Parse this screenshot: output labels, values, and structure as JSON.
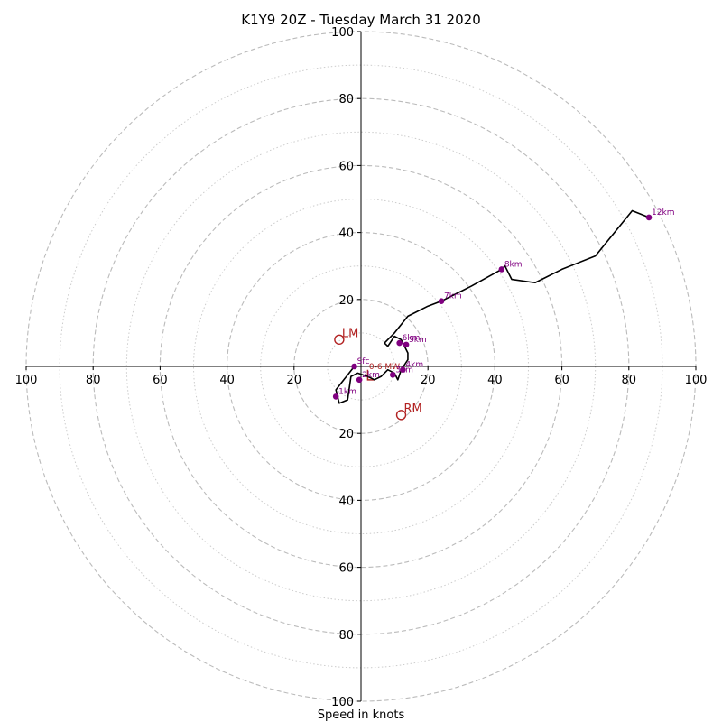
{
  "chart_data": {
    "type": "hodograph",
    "title": "K1Y9 20Z - Tuesday March 31 2020",
    "xlabel": "Speed in knots",
    "ylabel": "",
    "range": [
      -100,
      100
    ],
    "ring_major": [
      20,
      40,
      60,
      80,
      100
    ],
    "ring_minor": [
      10,
      30,
      50,
      70,
      90
    ],
    "tick_labels": [
      20,
      40,
      60,
      80,
      100
    ],
    "grid": true,
    "colors": {
      "trace": "#000000",
      "height_marker": "#800080",
      "motion": "#b22222",
      "grid": "#bbbbbb"
    },
    "trace": [
      [
        -2,
        0
      ],
      [
        -7.5,
        -7
      ],
      [
        -6.5,
        -11
      ],
      [
        -4,
        -10
      ],
      [
        -3,
        -3
      ],
      [
        -1,
        -2
      ],
      [
        2,
        -3
      ],
      [
        4,
        -4
      ],
      [
        6,
        -3
      ],
      [
        7,
        -2
      ],
      [
        8,
        -1
      ],
      [
        10,
        -2
      ],
      [
        11,
        -4
      ],
      [
        12,
        -1
      ],
      [
        14,
        2
      ],
      [
        14,
        4
      ],
      [
        12,
        8
      ],
      [
        10,
        9
      ],
      [
        8,
        6
      ],
      [
        7,
        7
      ],
      [
        10,
        10
      ],
      [
        14,
        15
      ],
      [
        20,
        18
      ],
      [
        24,
        19.5
      ],
      [
        33,
        24
      ],
      [
        42,
        29
      ],
      [
        43,
        30
      ],
      [
        45,
        26
      ],
      [
        52,
        25
      ],
      [
        60,
        29
      ],
      [
        70,
        33
      ],
      [
        81,
        46.5
      ],
      [
        86,
        44.5
      ]
    ],
    "heights": [
      {
        "label": "Sfc",
        "x": -2,
        "y": 0
      },
      {
        "label": "1km",
        "x": -7.5,
        "y": -9
      },
      {
        "label": "2km",
        "x": -0.5,
        "y": -4
      },
      {
        "label": "3km",
        "x": 9.5,
        "y": -2.5
      },
      {
        "label": "4km",
        "x": 12.5,
        "y": -1
      },
      {
        "label": "5km",
        "x": 13.5,
        "y": 6.5
      },
      {
        "label": "6km",
        "x": 11.5,
        "y": 7
      },
      {
        "label": "7km",
        "x": 24,
        "y": 19.5
      },
      {
        "label": "8km",
        "x": 42,
        "y": 29
      },
      {
        "label": "12km",
        "x": 86,
        "y": 44.5
      }
    ],
    "storm_motion": {
      "lm": {
        "label": "LM",
        "x": -6.5,
        "y": 8
      },
      "rm": {
        "label": "RM",
        "x": 12,
        "y": -14.5
      },
      "mean_wind": {
        "label": "0-6 MW",
        "x": 7,
        "y": -0.8
      },
      "shear_vector": [
        [
          2,
          -1
        ],
        [
          2,
          -4
        ],
        [
          4,
          -4
        ]
      ]
    }
  }
}
